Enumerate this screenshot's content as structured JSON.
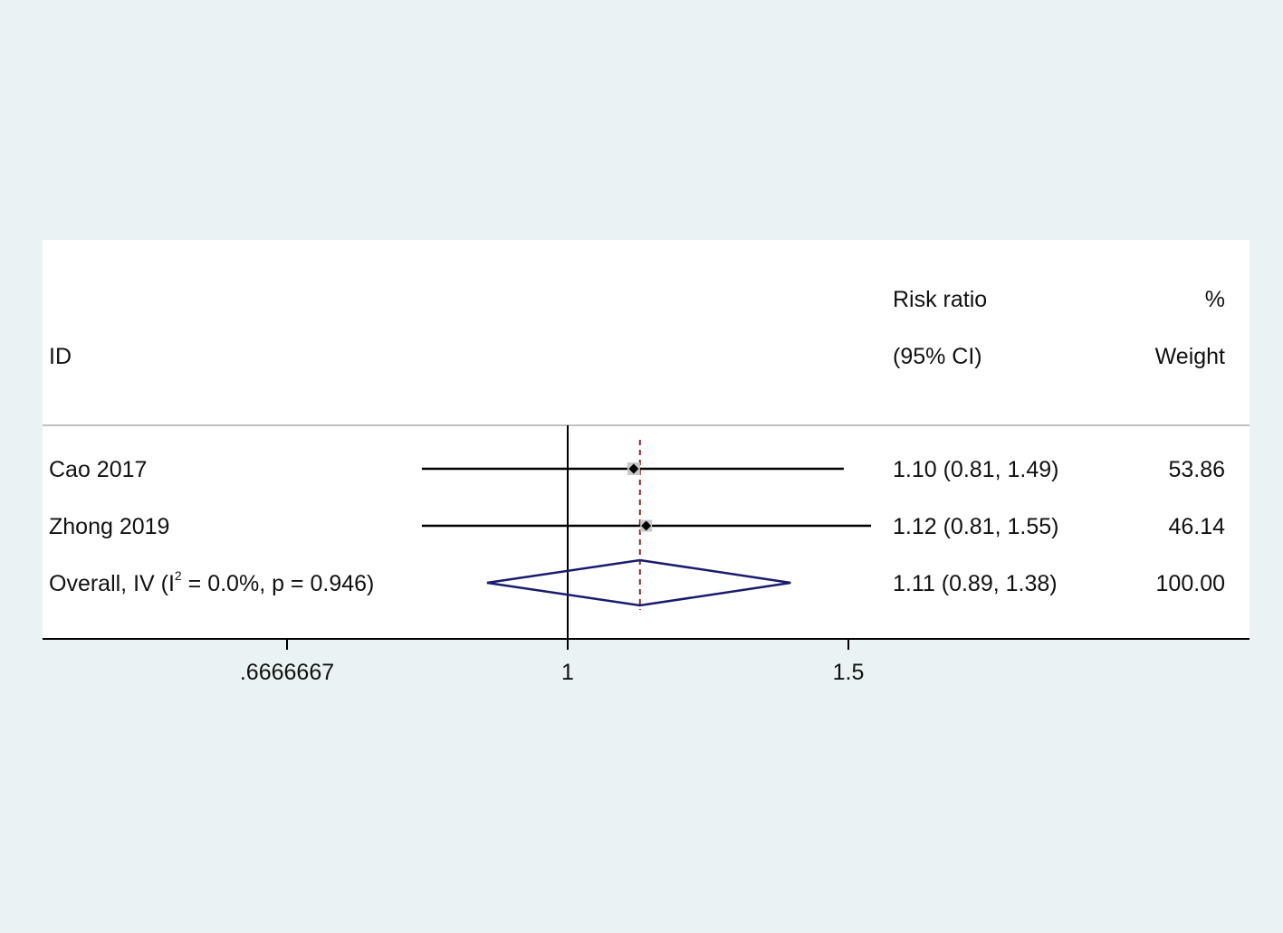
{
  "chart_data": {
    "type": "forest",
    "scale": "log",
    "effect_label_line1": "Risk ratio",
    "effect_label_line2": "(95% CI)",
    "weight_label_line1": "%",
    "weight_label_line2": "Weight",
    "id_label": "ID",
    "studies": [
      {
        "id": "Cao 2017",
        "estimate": 1.1,
        "lower": 0.81,
        "upper": 1.49,
        "ci_text": "1.10 (0.81, 1.49)",
        "weight": 53.86,
        "weight_text": "53.86"
      },
      {
        "id": "Zhong 2019",
        "estimate": 1.12,
        "lower": 0.81,
        "upper": 1.55,
        "ci_text": "1.12 (0.81, 1.55)",
        "weight": 46.14,
        "weight_text": "46.14"
      }
    ],
    "overall": {
      "label_prefix": "Overall, IV (I",
      "label_sup": "2",
      "label_suffix": " = 0.0%, p = 0.946)",
      "estimate": 1.11,
      "lower": 0.89,
      "upper": 1.38,
      "ci_text": "1.11 (0.89, 1.38)",
      "weight_text": "100.00"
    },
    "null_value": 1,
    "x_ticks": [
      {
        "value": 0.6666667,
        "label": ".6666667"
      },
      {
        "value": 1,
        "label": "1"
      },
      {
        "value": 1.5,
        "label": "1.5"
      }
    ],
    "colors": {
      "background": "#eaf2f3",
      "panel": "#ffffff",
      "ci_line": "#000000",
      "weight_box": "#c8c8c8",
      "diamond": "#1a1a6e",
      "overall_line": "#8b2a2a"
    }
  }
}
